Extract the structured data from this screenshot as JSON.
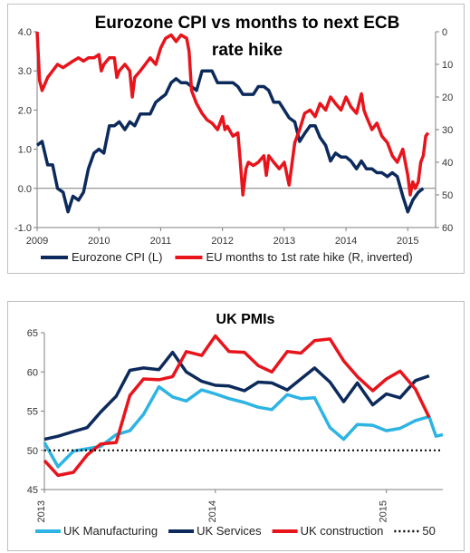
{
  "chart_data": [
    {
      "type": "line",
      "title_line1": "Eurozone CPI vs months to next ECB",
      "title_line2": "rate hike",
      "x_ticks": [
        "2009",
        "2010",
        "2011",
        "2012",
        "2013",
        "2014",
        "2015"
      ],
      "y_left_ticks": [
        "4.0",
        "3.0",
        "2.0",
        "1.0",
        "0.0",
        "-1.0"
      ],
      "y_right_ticks": [
        "0",
        "10",
        "20",
        "30",
        "40",
        "50",
        "60"
      ],
      "y_left_range": [
        -1.0,
        4.0
      ],
      "y_right_range": [
        0,
        60
      ],
      "y_right_inverted": true,
      "x_range": [
        2009.0,
        2015.45
      ],
      "grid": false,
      "legend_position": "bottom",
      "series": [
        {
          "name": "Eurozone CPI (L)",
          "axis": "left",
          "color": "#0d2a5c",
          "points": [
            [
              2009.0,
              1.1
            ],
            [
              2009.08,
              1.2
            ],
            [
              2009.17,
              0.6
            ],
            [
              2009.25,
              0.6
            ],
            [
              2009.33,
              0.0
            ],
            [
              2009.42,
              -0.1
            ],
            [
              2009.5,
              -0.6
            ],
            [
              2009.58,
              -0.2
            ],
            [
              2009.67,
              -0.3
            ],
            [
              2009.75,
              -0.1
            ],
            [
              2009.83,
              0.5
            ],
            [
              2009.92,
              0.9
            ],
            [
              2010.0,
              1.0
            ],
            [
              2010.08,
              0.9
            ],
            [
              2010.17,
              1.6
            ],
            [
              2010.25,
              1.6
            ],
            [
              2010.33,
              1.7
            ],
            [
              2010.42,
              1.5
            ],
            [
              2010.5,
              1.7
            ],
            [
              2010.58,
              1.6
            ],
            [
              2010.67,
              1.9
            ],
            [
              2010.75,
              1.9
            ],
            [
              2010.83,
              1.9
            ],
            [
              2010.92,
              2.2
            ],
            [
              2011.0,
              2.3
            ],
            [
              2011.08,
              2.4
            ],
            [
              2011.17,
              2.7
            ],
            [
              2011.25,
              2.8
            ],
            [
              2011.33,
              2.7
            ],
            [
              2011.42,
              2.7
            ],
            [
              2011.5,
              2.6
            ],
            [
              2011.58,
              2.5
            ],
            [
              2011.67,
              3.0
            ],
            [
              2011.75,
              3.0
            ],
            [
              2011.83,
              3.0
            ],
            [
              2011.92,
              2.7
            ],
            [
              2012.0,
              2.7
            ],
            [
              2012.08,
              2.7
            ],
            [
              2012.17,
              2.7
            ],
            [
              2012.25,
              2.6
            ],
            [
              2012.33,
              2.4
            ],
            [
              2012.42,
              2.4
            ],
            [
              2012.5,
              2.4
            ],
            [
              2012.58,
              2.6
            ],
            [
              2012.67,
              2.6
            ],
            [
              2012.75,
              2.5
            ],
            [
              2012.83,
              2.2
            ],
            [
              2012.92,
              2.2
            ],
            [
              2013.0,
              2.0
            ],
            [
              2013.08,
              1.8
            ],
            [
              2013.17,
              1.7
            ],
            [
              2013.25,
              1.2
            ],
            [
              2013.33,
              1.4
            ],
            [
              2013.42,
              1.6
            ],
            [
              2013.5,
              1.6
            ],
            [
              2013.58,
              1.3
            ],
            [
              2013.67,
              1.1
            ],
            [
              2013.75,
              0.7
            ],
            [
              2013.83,
              0.9
            ],
            [
              2013.92,
              0.8
            ],
            [
              2014.0,
              0.8
            ],
            [
              2014.08,
              0.7
            ],
            [
              2014.17,
              0.5
            ],
            [
              2014.25,
              0.7
            ],
            [
              2014.33,
              0.5
            ],
            [
              2014.42,
              0.5
            ],
            [
              2014.5,
              0.4
            ],
            [
              2014.58,
              0.4
            ],
            [
              2014.67,
              0.3
            ],
            [
              2014.75,
              0.4
            ],
            [
              2014.83,
              0.3
            ],
            [
              2014.92,
              -0.2
            ],
            [
              2015.0,
              -0.6
            ],
            [
              2015.08,
              -0.3
            ],
            [
              2015.17,
              -0.1
            ],
            [
              2015.25,
              0.0
            ]
          ]
        },
        {
          "name": "EU months to 1st rate hike (R, inverted)",
          "axis": "right",
          "color": "#e8141c",
          "points": [
            [
              2009.0,
              0
            ],
            [
              2009.04,
              15
            ],
            [
              2009.08,
              18
            ],
            [
              2009.17,
              14
            ],
            [
              2009.25,
              12
            ],
            [
              2009.33,
              10
            ],
            [
              2009.42,
              11
            ],
            [
              2009.5,
              10
            ],
            [
              2009.58,
              9
            ],
            [
              2009.67,
              8
            ],
            [
              2009.75,
              9
            ],
            [
              2009.83,
              8
            ],
            [
              2009.92,
              8
            ],
            [
              2010.0,
              7
            ],
            [
              2010.04,
              12
            ],
            [
              2010.08,
              10
            ],
            [
              2010.17,
              8
            ],
            [
              2010.25,
              8
            ],
            [
              2010.29,
              14
            ],
            [
              2010.33,
              12
            ],
            [
              2010.42,
              10
            ],
            [
              2010.5,
              12
            ],
            [
              2010.54,
              20
            ],
            [
              2010.58,
              14
            ],
            [
              2010.67,
              12
            ],
            [
              2010.75,
              10
            ],
            [
              2010.83,
              8
            ],
            [
              2010.92,
              10
            ],
            [
              2011.0,
              5
            ],
            [
              2011.08,
              2
            ],
            [
              2011.17,
              1
            ],
            [
              2011.25,
              3
            ],
            [
              2011.33,
              1
            ],
            [
              2011.42,
              2
            ],
            [
              2011.46,
              6
            ],
            [
              2011.5,
              18
            ],
            [
              2011.58,
              22
            ],
            [
              2011.67,
              25
            ],
            [
              2011.75,
              27
            ],
            [
              2011.83,
              28
            ],
            [
              2011.92,
              30
            ],
            [
              2012.0,
              26
            ],
            [
              2012.04,
              30
            ],
            [
              2012.08,
              29
            ],
            [
              2012.17,
              32
            ],
            [
              2012.25,
              31
            ],
            [
              2012.29,
              40
            ],
            [
              2012.33,
              50
            ],
            [
              2012.38,
              42
            ],
            [
              2012.42,
              40
            ],
            [
              2012.5,
              41
            ],
            [
              2012.58,
              40
            ],
            [
              2012.67,
              38
            ],
            [
              2012.71,
              44
            ],
            [
              2012.75,
              38
            ],
            [
              2012.83,
              40
            ],
            [
              2012.92,
              42
            ],
            [
              2013.0,
              40
            ],
            [
              2013.08,
              47
            ],
            [
              2013.17,
              34
            ],
            [
              2013.25,
              30
            ],
            [
              2013.33,
              25
            ],
            [
              2013.42,
              24
            ],
            [
              2013.5,
              26
            ],
            [
              2013.58,
              22
            ],
            [
              2013.67,
              24
            ],
            [
              2013.75,
              20
            ],
            [
              2013.83,
              22
            ],
            [
              2013.92,
              24
            ],
            [
              2014.0,
              20
            ],
            [
              2014.08,
              23
            ],
            [
              2014.17,
              25
            ],
            [
              2014.25,
              19
            ],
            [
              2014.29,
              24
            ],
            [
              2014.33,
              26
            ],
            [
              2014.42,
              30
            ],
            [
              2014.5,
              28
            ],
            [
              2014.58,
              32
            ],
            [
              2014.67,
              34
            ],
            [
              2014.75,
              38
            ],
            [
              2014.83,
              40
            ],
            [
              2014.92,
              36
            ],
            [
              2015.0,
              44
            ],
            [
              2015.04,
              50
            ],
            [
              2015.08,
              46
            ],
            [
              2015.12,
              48
            ],
            [
              2015.17,
              46
            ],
            [
              2015.21,
              40
            ],
            [
              2015.25,
              38
            ],
            [
              2015.29,
              32
            ],
            [
              2015.33,
              31
            ]
          ]
        }
      ]
    },
    {
      "type": "line",
      "title": "UK PMIs",
      "x_ticks": [
        "2013",
        "2014",
        "2015"
      ],
      "y_ticks": [
        "65",
        "60",
        "55",
        "50",
        "45"
      ],
      "y_range": [
        45,
        65
      ],
      "x_range": [
        2013.0,
        2015.33
      ],
      "grid": false,
      "legend_position": "bottom",
      "series": [
        {
          "name": "UK Manufacturing",
          "color": "#2db4e3",
          "points": [
            [
              2013.0,
              51.0
            ],
            [
              2013.08,
              47.9
            ],
            [
              2013.17,
              49.9
            ],
            [
              2013.25,
              50.2
            ],
            [
              2013.33,
              50.5
            ],
            [
              2013.42,
              52.0
            ],
            [
              2013.5,
              52.5
            ],
            [
              2013.58,
              54.6
            ],
            [
              2013.67,
              58.1
            ],
            [
              2013.75,
              56.8
            ],
            [
              2013.83,
              56.3
            ],
            [
              2013.92,
              57.7
            ],
            [
              2014.0,
              57.2
            ],
            [
              2014.08,
              56.6
            ],
            [
              2014.17,
              56.1
            ],
            [
              2014.25,
              55.5
            ],
            [
              2014.33,
              55.2
            ],
            [
              2014.42,
              57.1
            ],
            [
              2014.5,
              56.6
            ],
            [
              2014.58,
              56.7
            ],
            [
              2014.67,
              52.9
            ],
            [
              2014.75,
              51.4
            ],
            [
              2014.83,
              53.3
            ],
            [
              2014.92,
              53.2
            ],
            [
              2015.0,
              52.5
            ],
            [
              2015.08,
              52.8
            ],
            [
              2015.17,
              53.8
            ],
            [
              2015.25,
              54.3
            ],
            [
              2015.29,
              51.8
            ],
            [
              2015.33,
              52.0
            ]
          ]
        },
        {
          "name": "UK Services",
          "color": "#0d2a5c",
          "points": [
            [
              2013.0,
              51.4
            ],
            [
              2013.08,
              51.8
            ],
            [
              2013.17,
              52.4
            ],
            [
              2013.25,
              52.9
            ],
            [
              2013.33,
              54.9
            ],
            [
              2013.42,
              56.9
            ],
            [
              2013.5,
              60.2
            ],
            [
              2013.58,
              60.5
            ],
            [
              2013.67,
              60.3
            ],
            [
              2013.75,
              62.5
            ],
            [
              2013.83,
              60.0
            ],
            [
              2013.92,
              58.8
            ],
            [
              2014.0,
              58.3
            ],
            [
              2014.08,
              58.2
            ],
            [
              2014.17,
              57.6
            ],
            [
              2014.25,
              58.7
            ],
            [
              2014.33,
              58.6
            ],
            [
              2014.42,
              57.7
            ],
            [
              2014.5,
              59.1
            ],
            [
              2014.58,
              60.5
            ],
            [
              2014.67,
              58.7
            ],
            [
              2014.75,
              56.2
            ],
            [
              2014.83,
              58.6
            ],
            [
              2014.92,
              55.8
            ],
            [
              2015.0,
              57.2
            ],
            [
              2015.08,
              56.7
            ],
            [
              2015.17,
              58.9
            ],
            [
              2015.25,
              59.5
            ]
          ]
        },
        {
          "name": "UK construction",
          "color": "#e8141c",
          "points": [
            [
              2013.0,
              48.7
            ],
            [
              2013.08,
              46.8
            ],
            [
              2013.17,
              47.2
            ],
            [
              2013.25,
              49.4
            ],
            [
              2013.33,
              50.8
            ],
            [
              2013.42,
              51.0
            ],
            [
              2013.5,
              57.0
            ],
            [
              2013.58,
              59.1
            ],
            [
              2013.67,
              59.0
            ],
            [
              2013.75,
              59.4
            ],
            [
              2013.83,
              62.6
            ],
            [
              2013.92,
              62.1
            ],
            [
              2014.0,
              64.6
            ],
            [
              2014.08,
              62.6
            ],
            [
              2014.17,
              62.5
            ],
            [
              2014.25,
              60.8
            ],
            [
              2014.33,
              60.0
            ],
            [
              2014.42,
              62.6
            ],
            [
              2014.5,
              62.4
            ],
            [
              2014.58,
              64.0
            ],
            [
              2014.67,
              64.2
            ],
            [
              2014.75,
              61.4
            ],
            [
              2014.83,
              59.4
            ],
            [
              2014.92,
              57.6
            ],
            [
              2015.0,
              59.1
            ],
            [
              2015.08,
              60.1
            ],
            [
              2015.17,
              57.8
            ],
            [
              2015.25,
              54.2
            ]
          ]
        },
        {
          "name": "50",
          "color": "#000000",
          "dashed": true,
          "points": [
            [
              2013.0,
              50
            ],
            [
              2015.33,
              50
            ]
          ]
        }
      ]
    }
  ]
}
